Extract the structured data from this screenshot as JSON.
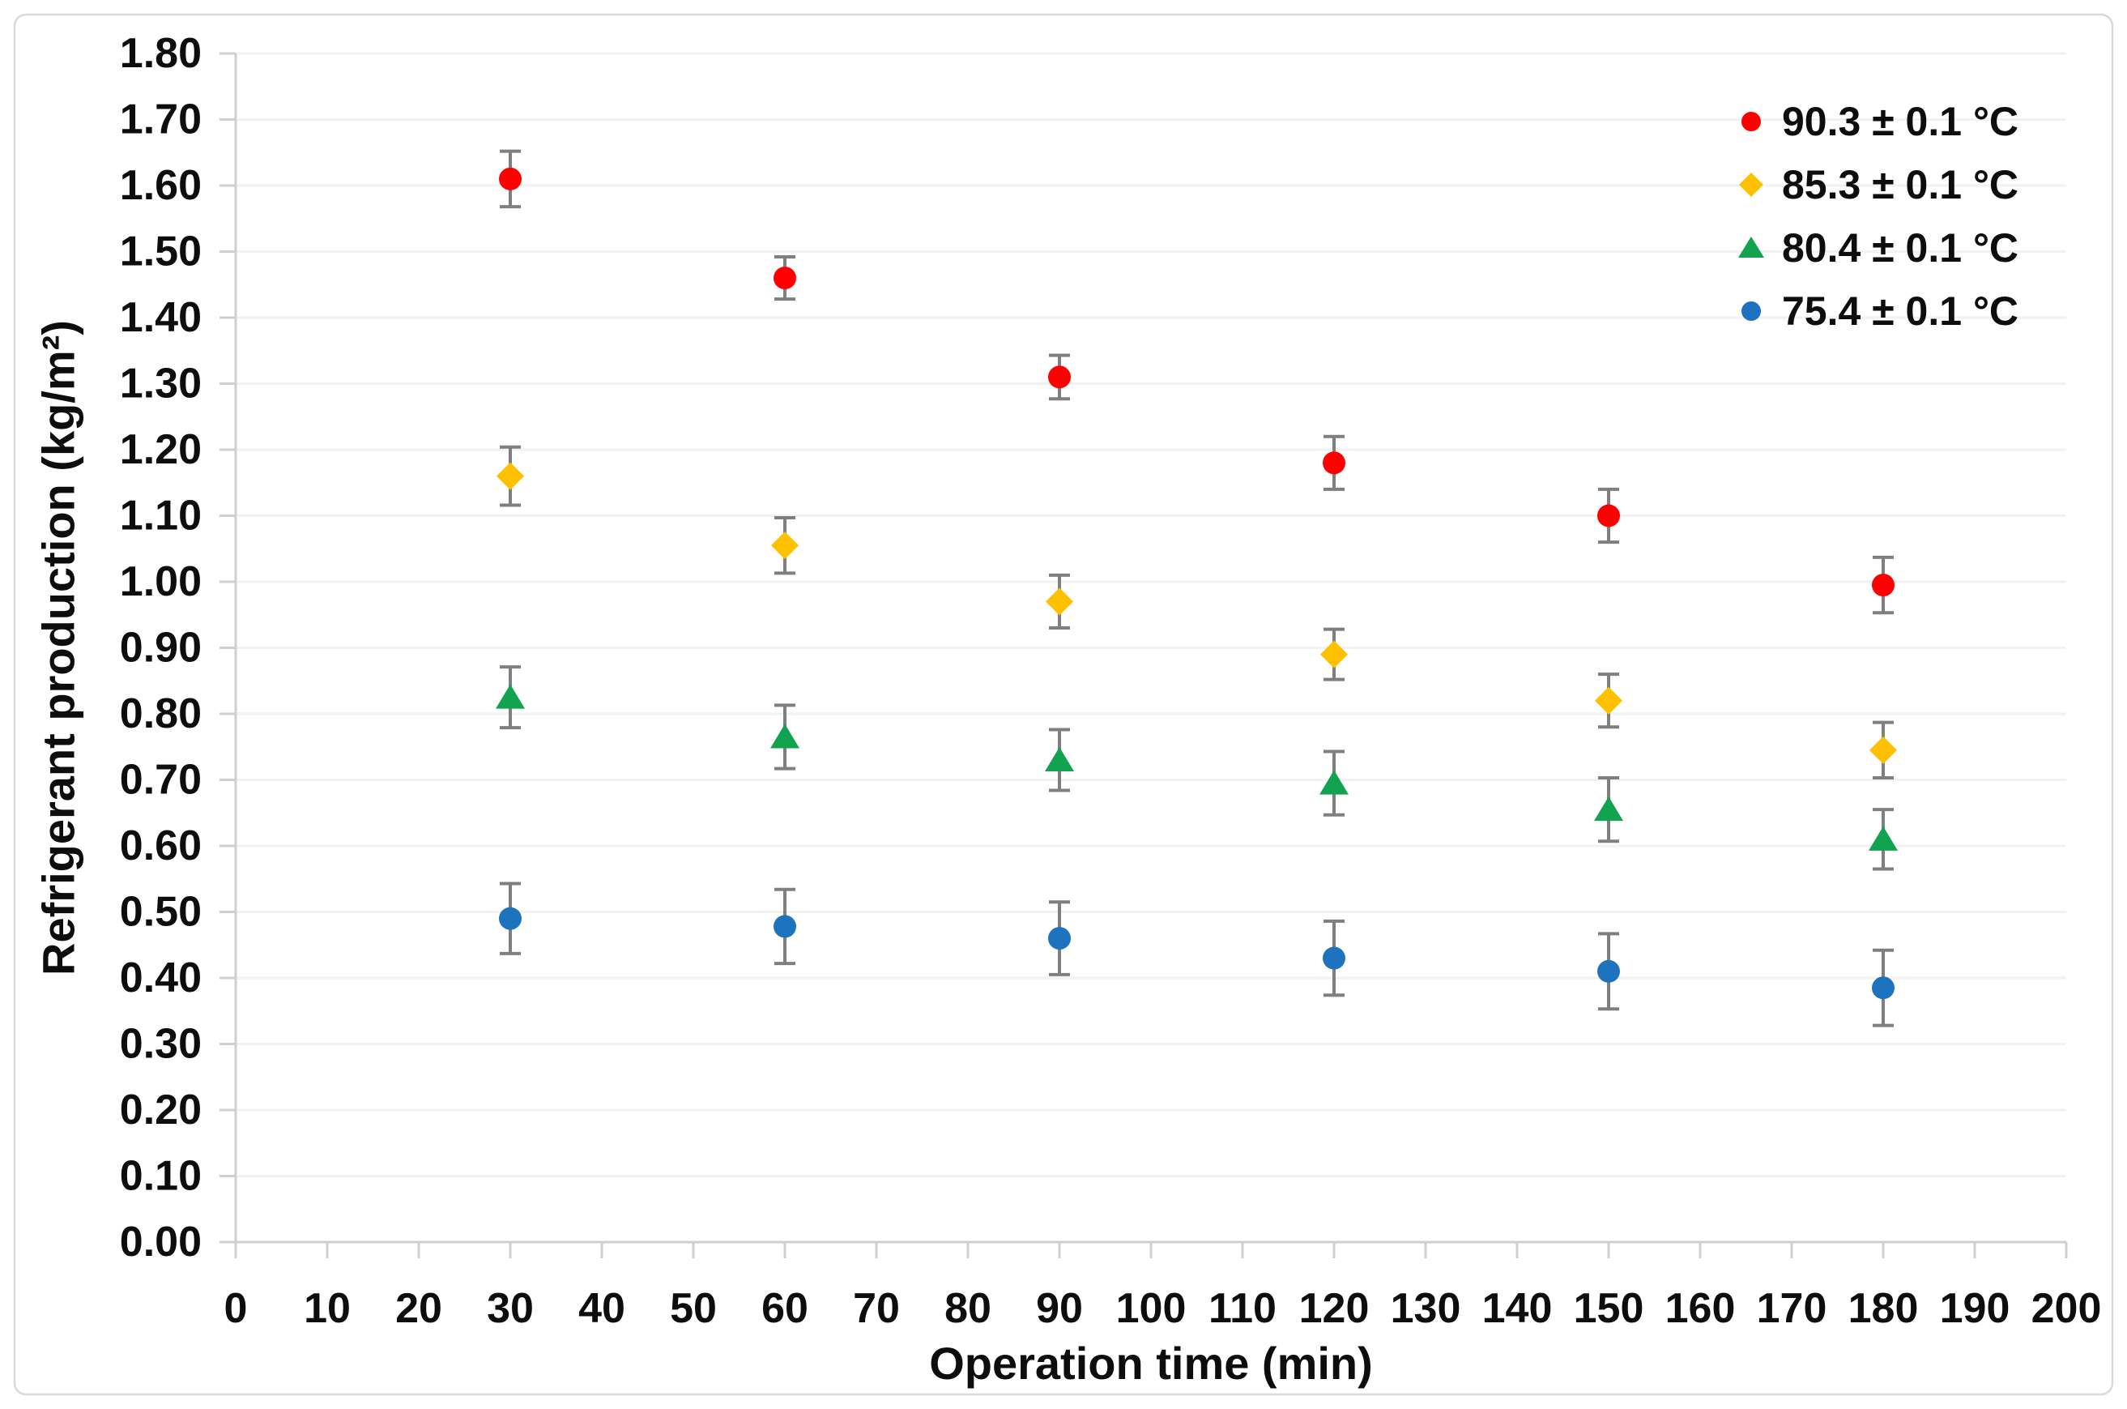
{
  "figure": {
    "background": "#ffffff",
    "border_color": "#d9d9d9"
  },
  "chart_data": {
    "type": "scatter",
    "title": "",
    "xlabel": "Operation time (min)",
    "ylabel": "Refrigerant production (kg/m²)",
    "xlim": [
      0,
      200
    ],
    "ylim": [
      0.0,
      1.8
    ],
    "x_tick_step": 10,
    "y_tick_step": 0.1,
    "y_tick_format_decimals": 2,
    "grid": "horizontal",
    "legend_position": "top-right",
    "error_bars": true,
    "x": [
      30,
      60,
      90,
      120,
      150,
      180
    ],
    "series": [
      {
        "name": "90.3 ± 0.1 °C",
        "marker": "circle",
        "color": "#fe0000",
        "values": [
          1.61,
          1.46,
          1.31,
          1.18,
          1.1,
          0.995
        ],
        "errors": [
          0.042,
          0.032,
          0.033,
          0.04,
          0.04,
          0.042
        ]
      },
      {
        "name": "85.3 ± 0.1 °C",
        "marker": "diamond",
        "color": "#ffc000",
        "values": [
          1.16,
          1.055,
          0.97,
          0.89,
          0.82,
          0.745
        ],
        "errors": [
          0.044,
          0.042,
          0.04,
          0.038,
          0.04,
          0.042
        ]
      },
      {
        "name": "80.4 ± 0.1 °C",
        "marker": "triangle",
        "color": "#12a351",
        "values": [
          0.825,
          0.765,
          0.73,
          0.695,
          0.655,
          0.61
        ],
        "errors": [
          0.046,
          0.048,
          0.046,
          0.048,
          0.048,
          0.045
        ]
      },
      {
        "name": "75.4 ± 0.1 °C",
        "marker": "circle",
        "color": "#1e73be",
        "values": [
          0.49,
          0.478,
          0.46,
          0.43,
          0.41,
          0.385
        ],
        "errors": [
          0.053,
          0.056,
          0.055,
          0.056,
          0.057,
          0.057
        ]
      }
    ],
    "colors": {
      "axis": "#d0cece",
      "grid": "#f2f2f2",
      "error_bar": "#7f7f7f",
      "text": "#0d0d0d"
    }
  }
}
